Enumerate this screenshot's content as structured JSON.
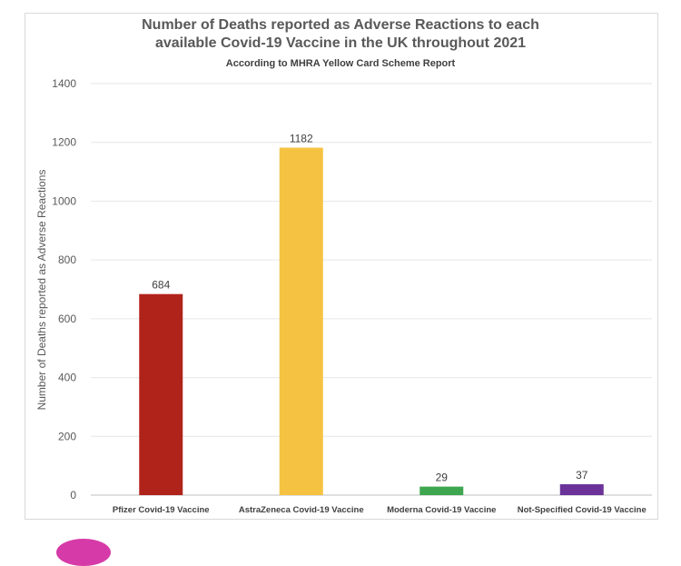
{
  "chart_data": {
    "type": "bar",
    "title_line1": "Number of Deaths reported as Adverse Reactions to each",
    "title_line2": "available Covid-19 Vaccine in the UK throughout 2021",
    "subtitle": "According to MHRA Yellow Card Scheme Report",
    "ylabel": "Number of Deaths reported as Adverse Reactions",
    "xlabel": "",
    "ylim": [
      0,
      1400
    ],
    "yticks": [
      0,
      200,
      400,
      600,
      800,
      1000,
      1200,
      1400
    ],
    "grid": true,
    "legend": "none",
    "categories": [
      "Pfizer Covid-19 Vaccine",
      "AstraZeneca Covid-19 Vaccine",
      "Moderna Covid-19 Vaccine",
      "Not-Specified Covid-19 Vaccine"
    ],
    "values": [
      684,
      1182,
      29,
      37
    ],
    "colors": [
      "#b0231a",
      "#f5c242",
      "#3fa650",
      "#6b3299"
    ]
  }
}
